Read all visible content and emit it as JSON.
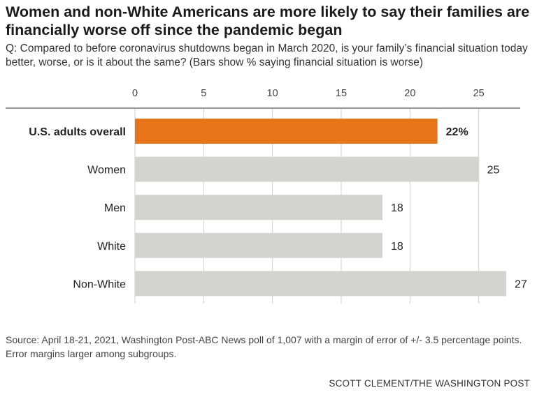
{
  "header": {
    "title": "Women and non-White Americans are more likely to say their families are financially worse off since the pandemic began",
    "subtitle": "Q: Compared to before coronavirus shutdowns began in March 2020, is your family’s financial situation today better, worse, or is it about the same? (Bars show % saying financial situation is worse)"
  },
  "chart_data": {
    "type": "bar",
    "orientation": "horizontal",
    "categories": [
      "U.S. adults overall",
      "Women",
      "Men",
      "White",
      "Non-White"
    ],
    "values": [
      22,
      25,
      18,
      18,
      27
    ],
    "data_labels": [
      "22%",
      "25",
      "18",
      "18",
      "27"
    ],
    "highlight_index": 0,
    "xlim": [
      0,
      27
    ],
    "xticks": [
      0,
      5,
      10,
      15,
      20,
      25
    ],
    "xaxis_position": "top",
    "grid": true,
    "colors": {
      "highlight": "#e8751a",
      "default": "#d4d4cf",
      "grid": "#cfcfcf",
      "axis": "#555555"
    }
  },
  "footer": {
    "source": "Source: April 18-21, 2021, Washington Post-ABC News poll of 1,007 with a margin of error of +/- 3.5 percentage points. Error margins larger among subgroups.",
    "credit": "SCOTT CLEMENT/THE WASHINGTON POST"
  }
}
